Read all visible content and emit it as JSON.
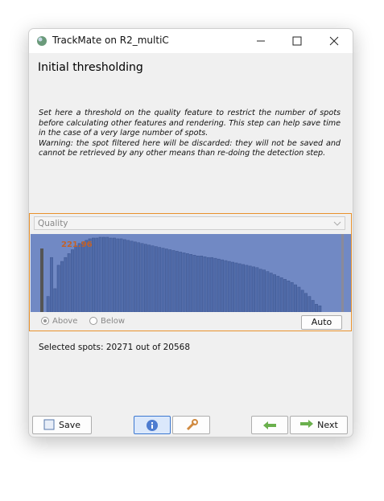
{
  "window": {
    "title": "TrackMate on R2_multiC"
  },
  "heading": "Initial thresholding",
  "description": [
    "Set here a threshold on the quality feature to restrict the number of spots before calculating other features and rendering. This step can help save time in the case of a very large number of spots.",
    "Warning: the spot filtered here will be discarded: they will not be saved and cannot be retrieved by any other means than re-doing the detection step."
  ],
  "feature": "Quality",
  "histogram": {
    "values": [
      20,
      70,
      30,
      60,
      65,
      70,
      75,
      80,
      85,
      88,
      90,
      92,
      94,
      95,
      95,
      96,
      96,
      96,
      95,
      95,
      94,
      94,
      93,
      92,
      91,
      90,
      89,
      88,
      87,
      86,
      85,
      84,
      83,
      82,
      81,
      80,
      79,
      78,
      77,
      76,
      75,
      74,
      73,
      72,
      72,
      71,
      70,
      70,
      69,
      68,
      67,
      66,
      65,
      64,
      63,
      62,
      61,
      60,
      59,
      58,
      57,
      55,
      54,
      52,
      50,
      48,
      46,
      44,
      42,
      40,
      38,
      35,
      32,
      28,
      24,
      20,
      15,
      10,
      8
    ],
    "threshold_label": "221.96"
  },
  "radios": [
    "Above",
    "Below"
  ],
  "auto_button": "Auto",
  "selected_spots": "Selected spots: 20271 out of 20568",
  "buttons": {
    "save": "Save",
    "next": "Next"
  }
}
